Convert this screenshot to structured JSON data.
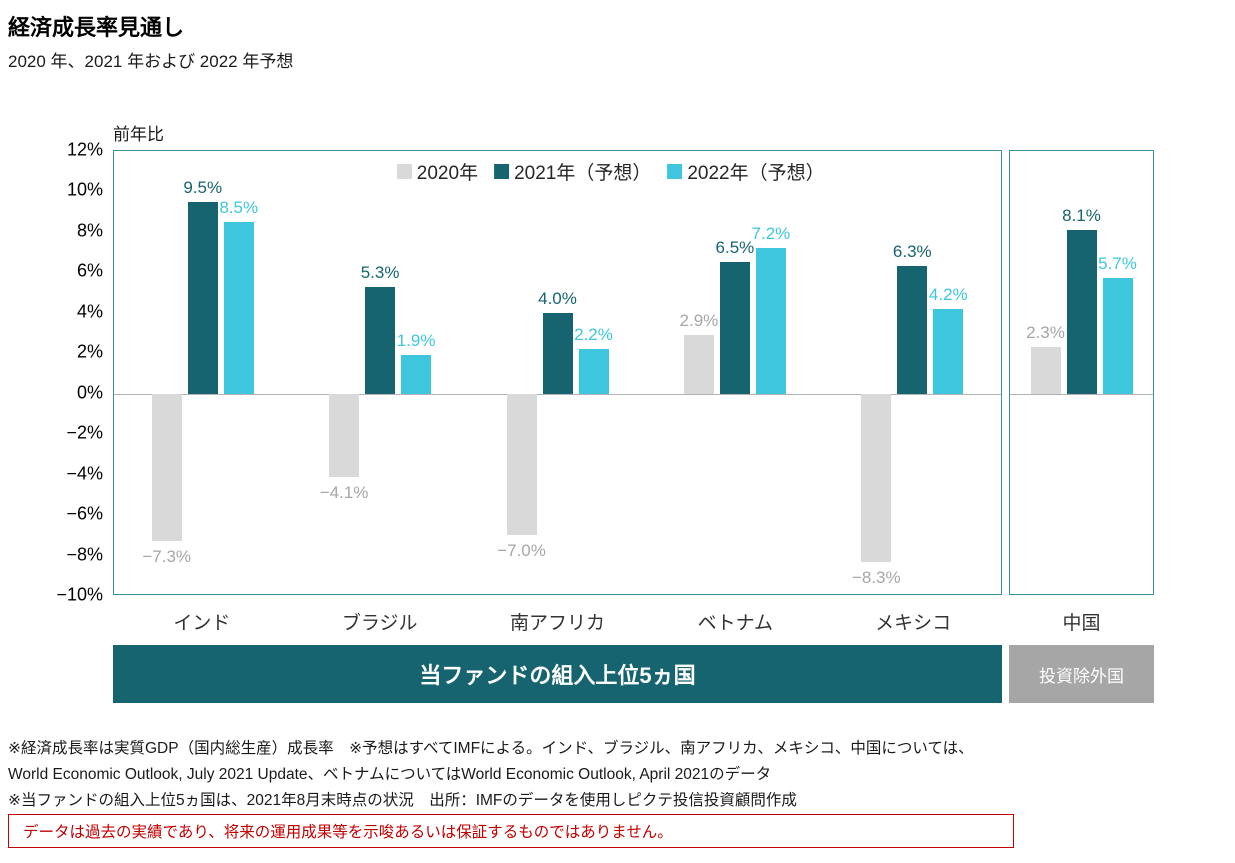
{
  "header": {
    "title": "経済成長率見通し",
    "subtitle": "2020 年、2021 年および 2022 年予想"
  },
  "chart_data": {
    "type": "bar",
    "title": "経済成長率見通し",
    "axis_unit_label": "前年比",
    "ylim": [
      -10,
      12
    ],
    "ytick_step": 2,
    "ytick_suffix": "%",
    "grid": false,
    "legend_position": "top-center",
    "frame_color": "#3a92a0",
    "zero_line_color": "#b3b3b3",
    "categories": [
      "インド",
      "ブラジル",
      "南アフリカ",
      "ベトナム",
      "メキシコ",
      "中国"
    ],
    "series": [
      {
        "name": "2020年",
        "color": "#d9d9d9",
        "label_color": "#a6a6a6",
        "values": [
          -7.3,
          -4.1,
          -7.0,
          2.9,
          -8.3,
          2.3
        ]
      },
      {
        "name": "2021年（予想）",
        "color": "#166470",
        "label_color": "#166470",
        "values": [
          9.5,
          5.3,
          4.0,
          6.5,
          6.3,
          8.1
        ]
      },
      {
        "name": "2022年（予想）",
        "color": "#3ec6de",
        "label_color": "#3ec6de",
        "values": [
          8.5,
          1.9,
          2.2,
          7.2,
          4.2,
          5.7
        ]
      }
    ],
    "groups": [
      {
        "label": "当ファンドの組入上位5ヵ国",
        "banner_color": "#166470",
        "category_indexes": [
          0,
          1,
          2,
          3,
          4
        ]
      },
      {
        "label": "投資除外国",
        "banner_color": "#a6a6a6",
        "category_indexes": [
          5
        ]
      }
    ]
  },
  "footnotes": [
    "※経済成長率は実質GDP（国内総生産）成長率　※予想はすべてIMFによる。インド、ブラジル、南アフリカ、メキシコ、中国については、",
    "World Economic Outlook, July 2021 Update、ベトナムについてはWorld Economic Outlook, April 2021のデータ",
    "※当ファンドの組入上位5ヵ国は、2021年8月末時点の状況　出所：IMFのデータを使用しピクテ投信投資顧問作成"
  ],
  "disclaimer": "データは過去の実績であり、将来の運用成果等を示唆あるいは保証するものではありません。"
}
